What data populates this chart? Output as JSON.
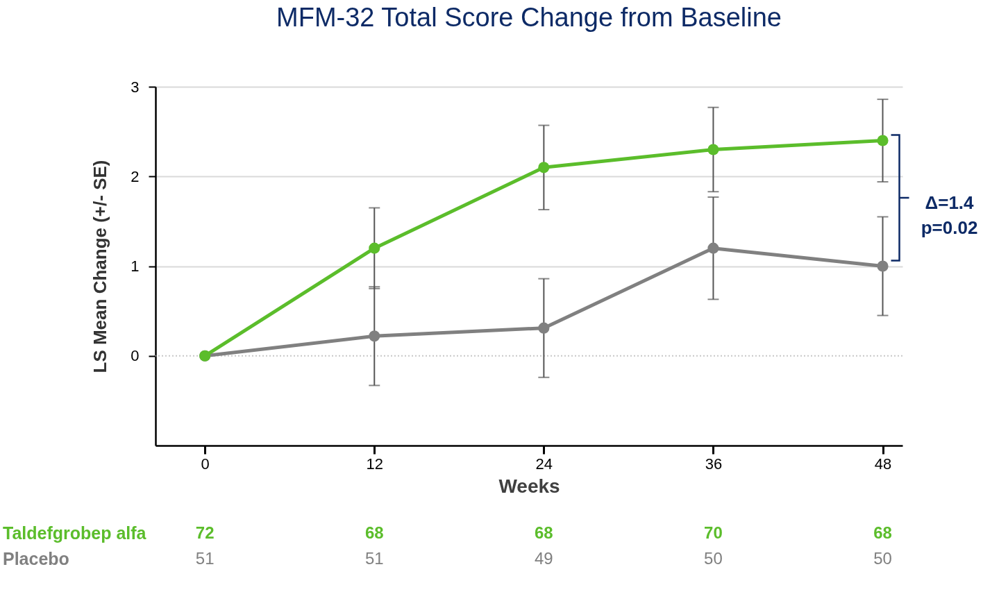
{
  "chart_data": {
    "type": "line",
    "title": "MFM-32 Total Score Change from Baseline",
    "xlabel": "Weeks",
    "ylabel": "LS Mean Change (+/- SE)",
    "x": [
      0,
      12,
      24,
      36,
      48
    ],
    "series": [
      {
        "name": "Taldefgrobep alfa",
        "color": "#5bbd2b",
        "values": [
          0,
          1.2,
          2.1,
          2.3,
          2.4
        ],
        "errors": [
          null,
          0.45,
          0.47,
          0.47,
          0.46
        ]
      },
      {
        "name": "Placebo",
        "color": "#808080",
        "values": [
          0,
          0.22,
          0.31,
          1.2,
          1.0
        ],
        "errors": [
          null,
          0.55,
          0.55,
          0.57,
          0.55
        ]
      }
    ],
    "xlim": [
      -3.5,
      49.4
    ],
    "xticks": [
      0,
      12,
      24,
      36,
      48
    ],
    "ylim": [
      -1,
      3
    ],
    "yticks": [
      0,
      1,
      2,
      3
    ],
    "grid": "y",
    "marker": "circle",
    "line_style": "solid",
    "ref_lines": [
      {
        "axis": "y",
        "value": 0,
        "color": "#c8c8c8",
        "line_style": "dotted"
      }
    ],
    "annotations": [
      "Δ=1.4\np=0.02",
      "72",
      "68",
      "68",
      "70",
      "68",
      "51",
      "51",
      "49",
      "50",
      "50"
    ]
  }
}
